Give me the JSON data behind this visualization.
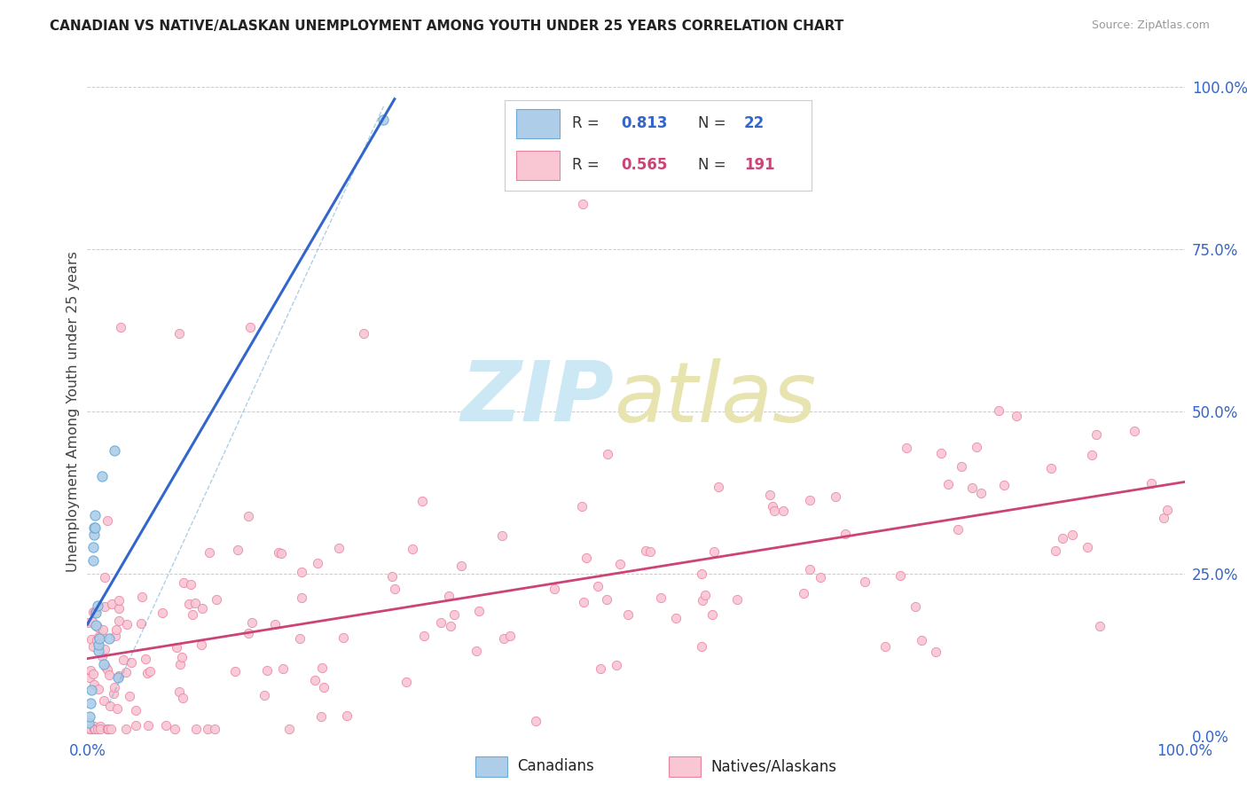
{
  "title": "CANADIAN VS NATIVE/ALASKAN UNEMPLOYMENT AMONG YOUTH UNDER 25 YEARS CORRELATION CHART",
  "source": "Source: ZipAtlas.com",
  "ylabel": "Unemployment Among Youth under 25 years",
  "R1": 0.813,
  "N1": 22,
  "R2": 0.565,
  "N2": 191,
  "color_canadian_fill": "#aecde8",
  "color_canadian_edge": "#6aaad4",
  "color_native_fill": "#f9c6d4",
  "color_native_edge": "#e8829e",
  "color_line1": "#3366cc",
  "color_line2": "#cc4477",
  "color_axis": "#3366cc",
  "color_grid": "#cccccc",
  "background_color": "#ffffff",
  "watermark_zip_color": "#cce8f4",
  "watermark_atlas_color": "#e8e4b0",
  "legend_border": "#cccccc",
  "canadians_x": [
    0.001,
    0.002,
    0.003,
    0.004,
    0.005,
    0.005,
    0.006,
    0.006,
    0.007,
    0.007,
    0.008,
    0.008,
    0.009,
    0.01,
    0.01,
    0.011,
    0.013,
    0.015,
    0.02,
    0.025,
    0.028,
    0.27
  ],
  "canadians_y": [
    0.02,
    0.03,
    0.05,
    0.07,
    0.27,
    0.29,
    0.31,
    0.32,
    0.32,
    0.34,
    0.17,
    0.19,
    0.2,
    0.13,
    0.14,
    0.15,
    0.4,
    0.11,
    0.15,
    0.44,
    0.09,
    0.95
  ],
  "natives_seed": 42,
  "xlim": [
    0,
    1.0
  ],
  "ylim": [
    0,
    1.0
  ]
}
